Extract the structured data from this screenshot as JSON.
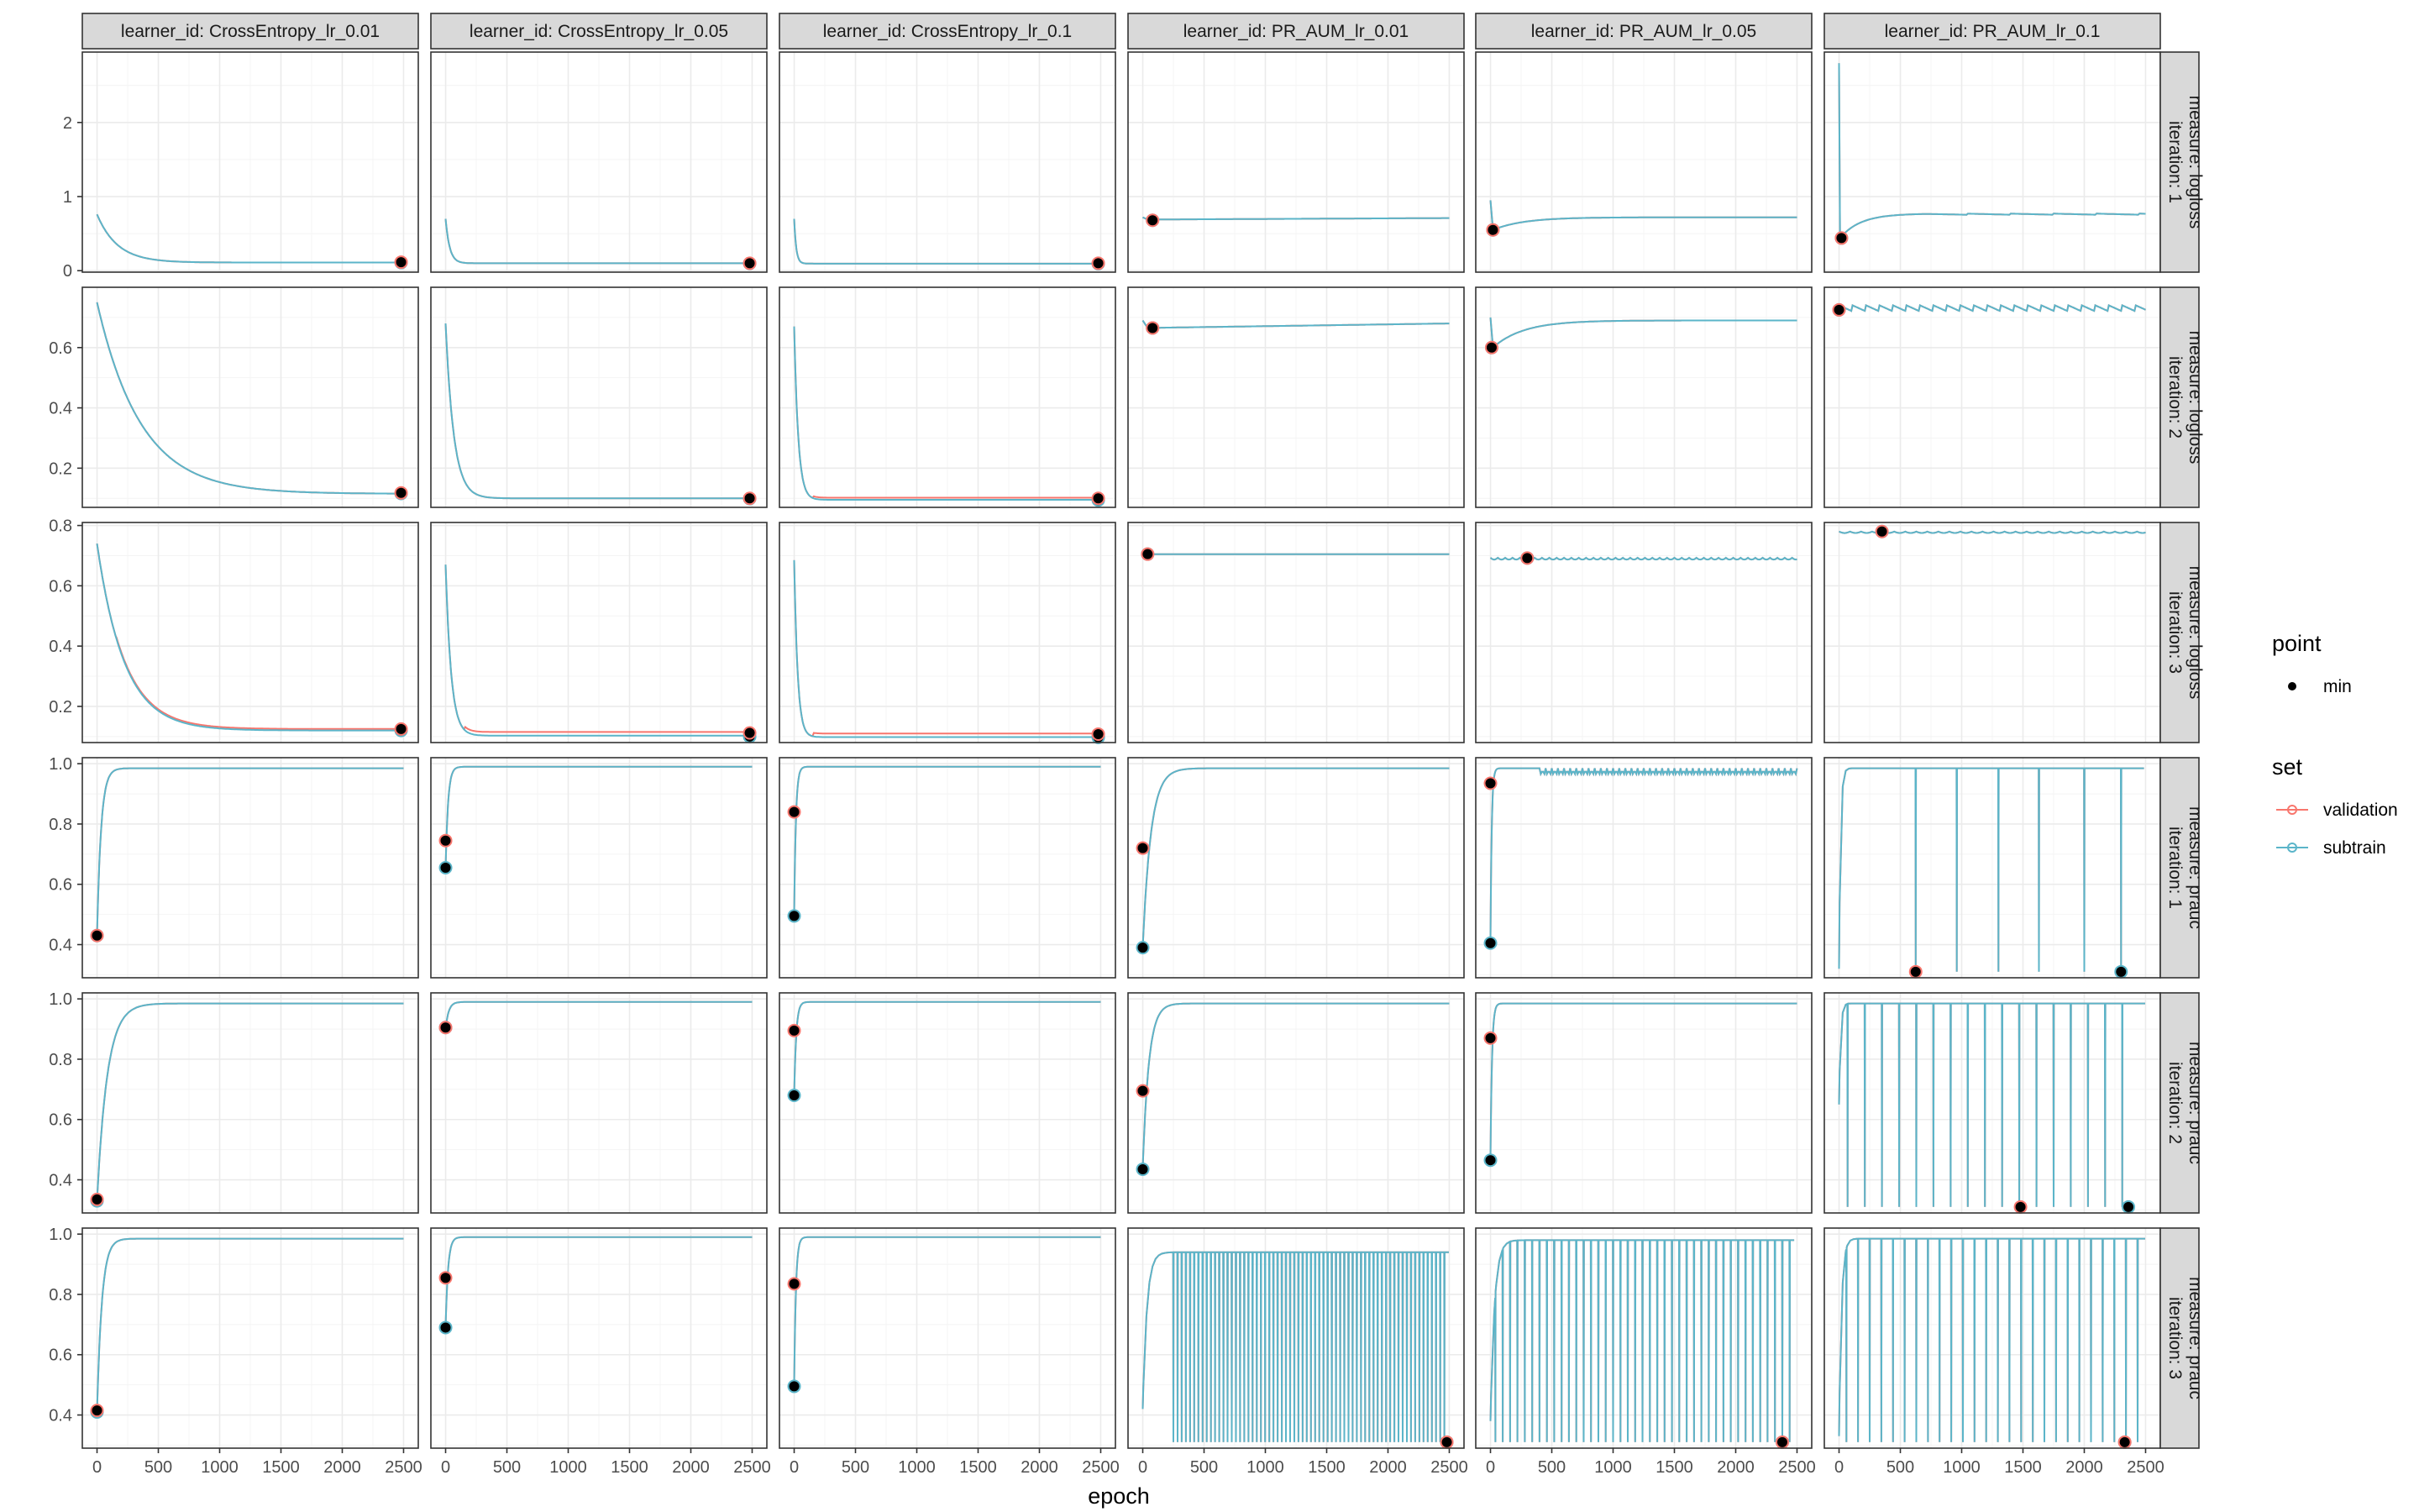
{
  "chart_data": {
    "type": "line",
    "xlabel": "epoch",
    "x_ticks": [
      0,
      500,
      1000,
      1500,
      2000,
      2500
    ],
    "xlim": [
      -120,
      2620
    ],
    "col_facets": [
      "learner_id: CrossEntropy_lr_0.01",
      "learner_id: CrossEntropy_lr_0.05",
      "learner_id: CrossEntropy_lr_0.1",
      "learner_id: PR_AUM_lr_0.01",
      "learner_id: PR_AUM_lr_0.05",
      "learner_id: PR_AUM_lr_0.1"
    ],
    "row_facets": [
      {
        "measure": "measure: logloss",
        "iteration": "iteration: 1",
        "ylim": [
          -0.02,
          2.95
        ],
        "y_ticks": [
          0,
          1,
          2
        ]
      },
      {
        "measure": "measure: logloss",
        "iteration": "iteration: 2",
        "ylim": [
          0.07,
          0.8
        ],
        "y_ticks": [
          0.2,
          0.4,
          0.6
        ]
      },
      {
        "measure": "measure: logloss",
        "iteration": "iteration: 3",
        "ylim": [
          0.08,
          0.81
        ],
        "y_ticks": [
          0.2,
          0.4,
          0.6,
          0.8
        ]
      },
      {
        "measure": "measure: prauc",
        "iteration": "iteration: 1",
        "ylim": [
          0.29,
          1.02
        ],
        "y_ticks": [
          0.4,
          0.6,
          0.8,
          1.0
        ]
      },
      {
        "measure": "measure: prauc",
        "iteration": "iteration: 2",
        "ylim": [
          0.29,
          1.02
        ],
        "y_ticks": [
          0.4,
          0.6,
          0.8,
          1.0
        ]
      },
      {
        "measure": "measure: prauc",
        "iteration": "iteration: 3",
        "ylim": [
          0.29,
          1.02
        ],
        "y_ticks": [
          0.4,
          0.6,
          0.8,
          1.0
        ]
      }
    ],
    "legend": {
      "placement": "right",
      "point_title": "point",
      "point_items": [
        "min"
      ],
      "set_title": "set",
      "set_items": [
        "validation",
        "subtrain"
      ]
    },
    "colors": {
      "validation": "#F8766D",
      "subtrain": "#5BB5C9",
      "min_point": "#000000",
      "panel_border": "#333333",
      "grid_major": "#ebebeb",
      "strip_fill": "#d9d9d9"
    },
    "grid": true,
    "panels": [
      [
        {
          "kind": "decay",
          "start": 0.76,
          "end": 0.11,
          "k": 0.006,
          "min_val": [
            [
              2480,
              0.115
            ]
          ],
          "min_sub": [
            [
              2480,
              0.11
            ]
          ]
        },
        {
          "kind": "decay",
          "start": 0.7,
          "end": 0.1,
          "k": 0.03,
          "min_val": [
            [
              2480,
              0.1
            ]
          ],
          "min_sub": [
            [
              2480,
              0.098
            ]
          ]
        },
        {
          "kind": "decay",
          "start": 0.7,
          "end": 0.095,
          "k": 0.06,
          "min_val": [
            [
              2480,
              0.1
            ]
          ],
          "min_sub": [
            [
              2480,
              0.095
            ]
          ]
        },
        {
          "kind": "flat",
          "start": 0.72,
          "level": 0.69,
          "end": 0.71,
          "min_val": [
            [
              80,
              0.68
            ]
          ],
          "min_sub": [
            [
              80,
              0.68
            ]
          ]
        },
        {
          "kind": "dip_rise",
          "start": 0.95,
          "dip": 0.55,
          "level": 0.72,
          "min_val": [
            [
              20,
              0.55
            ]
          ],
          "min_sub": [
            [
              20,
              0.55
            ]
          ]
        },
        {
          "kind": "spike_rise",
          "start": 2.8,
          "dip": 0.44,
          "level": 0.77,
          "min_val": [
            [
              20,
              0.44
            ]
          ],
          "min_sub": [
            [
              20,
              0.44
            ]
          ]
        }
      ],
      [
        {
          "kind": "decay",
          "start": 0.75,
          "end": 0.115,
          "k": 0.0028,
          "min_val": [
            [
              2480,
              0.118
            ]
          ],
          "min_sub": [
            [
              2480,
              0.116
            ]
          ]
        },
        {
          "kind": "decay",
          "start": 0.68,
          "end": 0.1,
          "k": 0.015,
          "min_val": [
            [
              2480,
              0.1
            ]
          ],
          "min_sub": [
            [
              2480,
              0.099
            ]
          ]
        },
        {
          "kind": "decay",
          "start": 0.67,
          "end": 0.095,
          "k": 0.03,
          "val_offset": 0.007,
          "min_val": [
            [
              2480,
              0.1
            ]
          ],
          "min_sub": [
            [
              2480,
              0.094
            ]
          ]
        },
        {
          "kind": "flat",
          "start": 0.69,
          "level": 0.665,
          "end": 0.68,
          "min_val": [
            [
              80,
              0.665
            ]
          ],
          "min_sub": [
            [
              80,
              0.665
            ]
          ]
        },
        {
          "kind": "dip_rise",
          "start": 0.7,
          "dip": 0.6,
          "level": 0.69,
          "min_val": [
            [
              10,
              0.6
            ]
          ],
          "min_sub": [
            [
              10,
              0.6
            ]
          ]
        },
        {
          "kind": "sawtooth",
          "start": 0.72,
          "level": 0.74,
          "amp": 0.02,
          "period": 110,
          "min_val": [
            [
              0,
              0.725
            ]
          ],
          "min_sub": [
            [
              0,
              0.725
            ]
          ]
        }
      ],
      [
        {
          "kind": "decay",
          "start": 0.74,
          "end": 0.12,
          "k": 0.0045,
          "val_offset": 0.005,
          "min_val": [
            [
              2480,
              0.125
            ]
          ],
          "min_sub": [
            [
              2480,
              0.12
            ]
          ]
        },
        {
          "kind": "decay",
          "start": 0.67,
          "end": 0.103,
          "k": 0.022,
          "val_offset": 0.012,
          "min_val": [
            [
              2480,
              0.112
            ]
          ],
          "min_sub": [
            [
              2480,
              0.1
            ]
          ]
        },
        {
          "kind": "decay",
          "start": 0.685,
          "end": 0.098,
          "k": 0.035,
          "val_offset": 0.012,
          "min_val": [
            [
              2480,
              0.108
            ]
          ],
          "min_sub": [
            [
              2480,
              0.097
            ]
          ]
        },
        {
          "kind": "flat",
          "start": 0.705,
          "level": 0.705,
          "end": 0.705,
          "min_val": [
            [
              40,
              0.705
            ]
          ],
          "min_sub": [
            [
              40,
              0.705
            ]
          ]
        },
        {
          "kind": "noisy",
          "start": 0.693,
          "level": 0.693,
          "amp": 0.006,
          "period": 60,
          "min_val": [
            [
              300,
              0.692
            ]
          ],
          "min_sub": [
            [
              300,
              0.692
            ]
          ]
        },
        {
          "kind": "noisy",
          "start": 0.78,
          "level": 0.78,
          "amp": 0.005,
          "period": 90,
          "min_val": [
            [
              350,
              0.78
            ]
          ],
          "min_sub": [
            [
              350,
              0.78
            ]
          ]
        }
      ],
      [
        {
          "kind": "rise",
          "start": 0.43,
          "level": 0.985,
          "k": 0.03,
          "min_val": [
            [
              0,
              0.43
            ]
          ],
          "min_sub": [
            [
              0,
              0.43
            ]
          ]
        },
        {
          "kind": "rise",
          "start": 0.65,
          "level": 0.99,
          "k": 0.05,
          "min_val": [
            [
              0,
              0.745
            ]
          ],
          "min_sub": [
            [
              0,
              0.655
            ]
          ]
        },
        {
          "kind": "rise",
          "start": 0.5,
          "level": 0.99,
          "k": 0.07,
          "min_val": [
            [
              0,
              0.84
            ]
          ],
          "min_sub": [
            [
              0,
              0.495
            ]
          ]
        },
        {
          "kind": "rise",
          "start": 0.39,
          "level": 0.985,
          "k": 0.015,
          "min_val": [
            [
              0,
              0.72
            ]
          ],
          "min_sub": [
            [
              0,
              0.39
            ]
          ]
        },
        {
          "kind": "rise_noisy",
          "start": 0.41,
          "level": 0.985,
          "k": 0.1,
          "amp": 0.02,
          "period": 25,
          "min_val": [
            [
              0,
              0.935
            ]
          ],
          "min_sub": [
            [
              0,
              0.405
            ]
          ]
        },
        {
          "kind": "spikes_down",
          "start": 0.32,
          "level": 0.985,
          "spike_low": 0.31,
          "spike_epochs": [
            625,
            960,
            1300,
            1630,
            2000,
            2300
          ],
          "min_val": [
            [
              625,
              0.31
            ]
          ],
          "min_sub": [
            [
              2300,
              0.31
            ]
          ]
        }
      ],
      [
        {
          "kind": "rise",
          "start": 0.33,
          "level": 0.985,
          "k": 0.012,
          "min_val": [
            [
              0,
              0.335
            ]
          ],
          "min_sub": [
            [
              0,
              0.33
            ]
          ]
        },
        {
          "kind": "rise",
          "start": 0.9,
          "level": 0.99,
          "k": 0.04,
          "min_val": [
            [
              0,
              0.905
            ]
          ],
          "min_sub": [
            [
              0,
              0.905
            ]
          ]
        },
        {
          "kind": "rise",
          "start": 0.68,
          "level": 0.99,
          "k": 0.06,
          "min_val": [
            [
              0,
              0.895
            ]
          ],
          "min_sub": [
            [
              0,
              0.68
            ]
          ]
        },
        {
          "kind": "rise",
          "start": 0.44,
          "level": 0.985,
          "k": 0.02,
          "min_val": [
            [
              0,
              0.695
            ]
          ],
          "min_sub": [
            [
              0,
              0.435
            ]
          ]
        },
        {
          "kind": "rise",
          "start": 0.47,
          "level": 0.985,
          "k": 0.08,
          "min_val": [
            [
              0,
              0.87
            ]
          ],
          "min_sub": [
            [
              0,
              0.465
            ]
          ]
        },
        {
          "kind": "spikes_down",
          "start": 0.65,
          "level": 0.985,
          "spike_low": 0.31,
          "spike_epochs": [
            70,
            210,
            350,
            490,
            630,
            770,
            910,
            1050,
            1190,
            1330,
            1470,
            1610,
            1750,
            1890,
            2030,
            2170,
            2310
          ],
          "min_val": [
            [
              1480,
              0.31
            ]
          ],
          "min_sub": [
            [
              2360,
              0.31
            ]
          ]
        }
      ],
      [
        {
          "kind": "rise",
          "start": 0.41,
          "level": 0.985,
          "k": 0.025,
          "min_val": [
            [
              0,
              0.415
            ]
          ],
          "min_sub": [
            [
              0,
              0.41
            ]
          ]
        },
        {
          "kind": "rise",
          "start": 0.69,
          "level": 0.99,
          "k": 0.05,
          "min_val": [
            [
              0,
              0.855
            ]
          ],
          "min_sub": [
            [
              0,
              0.69
            ]
          ]
        },
        {
          "kind": "rise",
          "start": 0.5,
          "level": 0.99,
          "k": 0.07,
          "min_val": [
            [
              0,
              0.835
            ]
          ],
          "min_sub": [
            [
              0,
              0.495
            ]
          ]
        },
        {
          "kind": "spikes_down",
          "start": 0.42,
          "level": 0.94,
          "spike_low": 0.31,
          "spike_epochs_from": 250,
          "spike_epochs_step": 34,
          "spike_epochs_to": 2480,
          "rise_k": 0.03,
          "min_val": [
            [
              2480,
              0.31
            ]
          ],
          "min_sub": [
            [
              2480,
              0.31
            ]
          ]
        },
        {
          "kind": "spikes_down",
          "start": 0.38,
          "level": 0.98,
          "spike_low": 0.31,
          "spike_epochs_from": 40,
          "spike_epochs_step": 60,
          "spike_epochs_to": 2460,
          "rise_k": 0.03,
          "min_val": [
            [
              2380,
              0.31
            ]
          ],
          "min_sub": [
            [
              2380,
              0.31
            ]
          ]
        },
        {
          "kind": "spikes_down",
          "start": 0.33,
          "level": 0.985,
          "spike_low": 0.31,
          "spike_epochs_from": 60,
          "spike_epochs_step": 95,
          "spike_epochs_to": 2460,
          "rise_k": 0.05,
          "min_val": [
            [
              2330,
              0.31
            ]
          ],
          "min_sub": [
            [
              2330,
              0.31
            ]
          ]
        }
      ]
    ]
  }
}
